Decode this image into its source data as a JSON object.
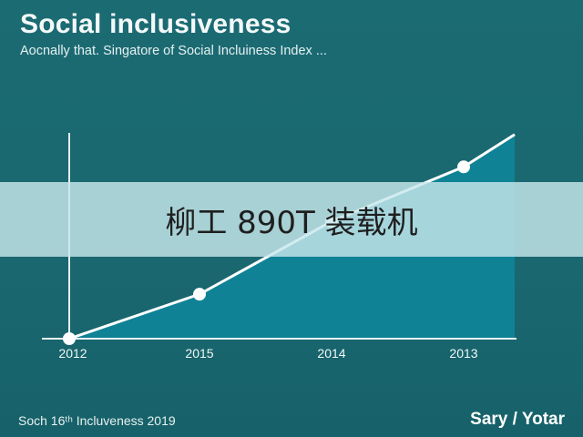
{
  "header": {
    "title": "Social inclusiveness",
    "subtitle": "Aocnally that. Singatore of Social Incluiness Index ..."
  },
  "overlay": {
    "text": "柳工 890T 装载机"
  },
  "footer": {
    "left_text": "Soch 16ᵗʰ Incluveness 2019",
    "right_text": "Sary / Yotar"
  },
  "colors": {
    "background": "#1b6b73",
    "area_fill": "#0f8296",
    "line": "#ffffff",
    "axis": "#e8f2f2"
  },
  "chart_data": {
    "type": "area",
    "categories": [
      "2012",
      "2015",
      "2014",
      "2013"
    ],
    "values": [
      0,
      22,
      58,
      85
    ],
    "end_value": 101,
    "ylim": [
      0,
      100
    ],
    "grid": false,
    "legend": "none",
    "title": "Social inclusiveness",
    "xlabel": "",
    "ylabel": ""
  }
}
